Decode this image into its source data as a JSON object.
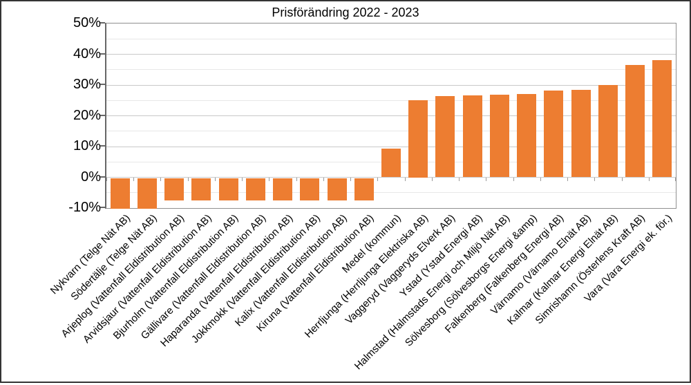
{
  "window": {
    "background": "#ffffff",
    "frame_color": "#333333"
  },
  "chart_data": {
    "type": "bar",
    "title": "Prisförändring 2022 - 2023",
    "categories": [
      "Nykvarn (Telge Nät AB)",
      "Södertälje (Telge Nät AB)",
      "Arjeplog (Vattenfall Eldistribution AB)",
      "Arvidsjaur (Vattenfall Eldistribution AB)",
      "Bjurholm (Vattenfall Eldistribution AB)",
      "Gällivare (Vattenfall Eldistribution AB)",
      "Haparanda (Vattenfall Eldistribution AB)",
      "Jokkmokk (Vattenfall Eldistribution AB)",
      "Kalix (Vattenfall Eldistribution AB)",
      "Kiruna (Vattenfall Eldistribution AB)",
      "Medel (kommun)",
      "Herrljunga (Herrljunga Elektriska AB)",
      "Vaggeryd (Vaggeryds Elverk AB)",
      "Ystad (Ystad Energi AB)",
      "Halmstad (Halmstads Energi och Miljö Nät AB)",
      "Sölvesborg (Sölvesborgs Energi &amp)",
      "Falkenberg (Falkenberg Energi AB)",
      "Värnamo (Värnamo Elnät AB)",
      "Kalmar (Kalmar Energi Elnät AB)",
      "Simrishamn (Österlens Kraft AB)",
      "Vara (Vara Energi ek. för.)"
    ],
    "values": [
      -10.0,
      -10.0,
      -7.3,
      -7.3,
      -7.3,
      -7.3,
      -7.3,
      -7.3,
      -7.3,
      -7.3,
      9.3,
      25.0,
      26.4,
      26.7,
      26.9,
      27.1,
      28.3,
      28.4,
      29.9,
      36.6,
      38.1
    ],
    "unit": "%",
    "ylim": [
      -10,
      50
    ],
    "y_major_step": 10,
    "y_minor_step": 5,
    "y_tick_labels": [
      "50%",
      "40%",
      "30%",
      "20%",
      "10%",
      "0%",
      "-10%"
    ],
    "xlabel": "",
    "ylabel": "",
    "legend": "none",
    "grid": "horizontal major+minor",
    "bar_color": "#ED7D31",
    "gridline_major_color": "#c9c9c9",
    "gridline_minor_color": "#e7e7e7",
    "plot_border_color": "#8f8f8f",
    "axis_line_color": "#666666",
    "x_label_rotation_deg": -45
  }
}
